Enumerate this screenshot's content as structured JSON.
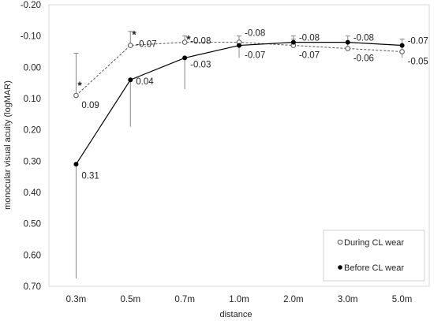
{
  "chart_data": {
    "type": "line",
    "title": "",
    "xlabel": "distance",
    "ylabel": "monocular visual acuity (logMAR)",
    "categories": [
      "0.3m",
      "0.5m",
      "0.7m",
      "1.0m",
      "2.0m",
      "3.0m",
      "5.0m"
    ],
    "ylim": [
      0.7,
      -0.2
    ],
    "y_inverted": true,
    "yticks": [
      "-0.20",
      "-0.10",
      "0.00",
      "0.10",
      "0.20",
      "0.30",
      "0.40",
      "0.50",
      "0.60",
      "0.70"
    ],
    "grid": false,
    "legend_position": "bottom-right",
    "series": [
      {
        "name": "During CL wear",
        "style": "dashed",
        "marker": "open-circle",
        "color": "#555555",
        "values": [
          0.09,
          -0.07,
          -0.08,
          -0.08,
          -0.07,
          -0.06,
          -0.05
        ],
        "labels": [
          "0.09",
          "-0.07",
          "-0.08",
          "-0.08",
          "-0.07",
          "-0.06",
          "-0.05"
        ],
        "error_upper": [
          0.135,
          0.045,
          0.02,
          0.02,
          0.02,
          0.02,
          0.02
        ],
        "error_lower": [
          0.0,
          0.0,
          0.0,
          0.0,
          0.0,
          0.0,
          0.0
        ],
        "significance": [
          "*",
          "*",
          "*",
          "",
          "",
          "",
          ""
        ]
      },
      {
        "name": "Before CL wear",
        "style": "solid",
        "marker": "filled-circle",
        "color": "#000000",
        "values": [
          0.31,
          0.04,
          -0.03,
          -0.07,
          -0.08,
          -0.08,
          -0.07
        ],
        "labels": [
          "0.31",
          "0.04",
          "-0.03",
          "-0.07",
          "-0.08",
          "-0.08",
          "-0.07"
        ],
        "error_upper": [
          0.0,
          0.0,
          0.0,
          0.0,
          0.02,
          0.02,
          0.02
        ],
        "error_lower": [
          0.365,
          0.15,
          0.1,
          0.04,
          0.0,
          0.0,
          0.04
        ]
      }
    ]
  }
}
